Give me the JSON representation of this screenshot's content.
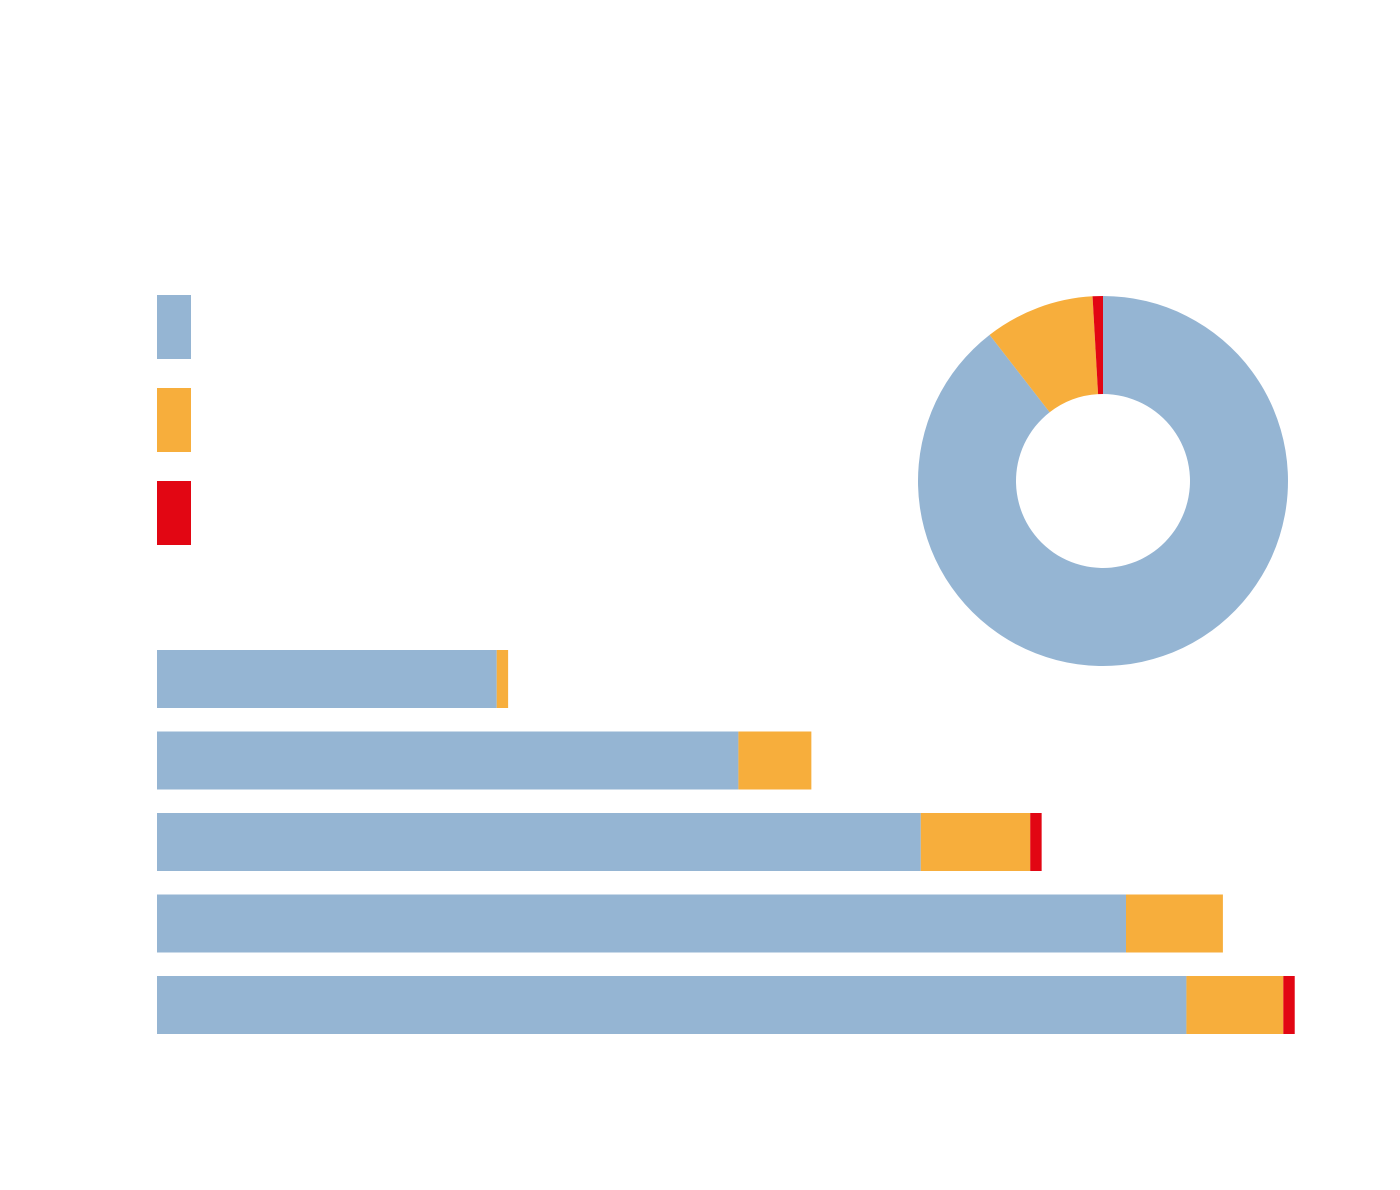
{
  "colors": {
    "series_1": "#95b5d3",
    "series_2": "#f7ae3c",
    "series_3": "#e20613",
    "background": "#ffffff"
  },
  "chart_data": [
    {
      "type": "pie",
      "variant": "donut",
      "legend": "left",
      "slices": [
        {
          "series": "series_1",
          "value": 89.5
        },
        {
          "series": "series_2",
          "value": 9.6
        },
        {
          "series": "series_3",
          "value": 0.9
        }
      ]
    },
    {
      "type": "bar",
      "orientation": "horizontal",
      "stacked": true,
      "grid": false,
      "xlim": [
        0,
        100
      ],
      "series": [
        {
          "key": "series_1",
          "values": [
            29.8,
            51.0,
            67.0,
            85.0,
            90.3
          ]
        },
        {
          "key": "series_2",
          "values": [
            1.0,
            6.4,
            9.6,
            8.5,
            8.5
          ]
        },
        {
          "key": "series_3",
          "values": [
            0.0,
            0.0,
            1.0,
            0.0,
            1.0
          ]
        }
      ]
    }
  ]
}
